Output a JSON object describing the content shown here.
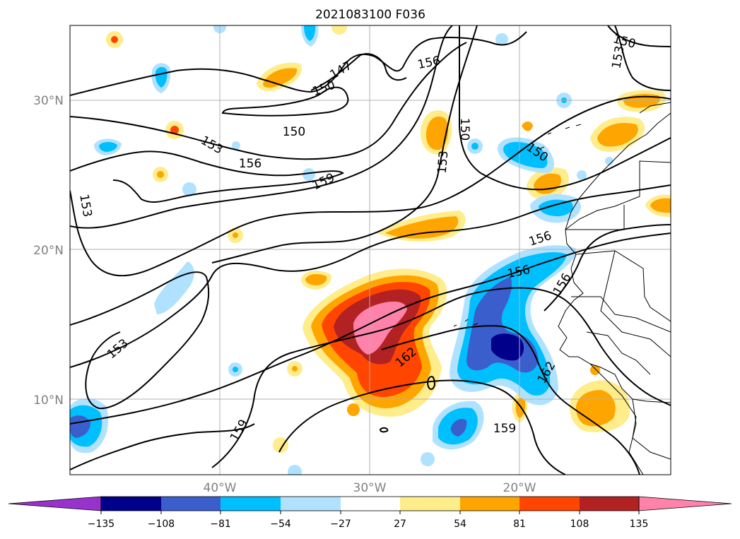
{
  "title": "2021083100 F036",
  "axes": {
    "lat_labels": [
      "30°N",
      "20°N",
      "10°N"
    ],
    "lon_labels": [
      "40°W",
      "30°W",
      "20°W"
    ],
    "grid": true,
    "label_color": "#808080"
  },
  "contour_labels": [
    "150",
    "153",
    "147",
    "156",
    "150",
    "150",
    "156",
    "153",
    "150",
    "153",
    "156",
    "150",
    "159",
    "153",
    "153",
    "156",
    "156",
    "162",
    "162",
    "159",
    "150",
    "159"
  ],
  "colorbar": {
    "orientation": "horizontal",
    "extend": "both",
    "ticks": [
      "−135",
      "−108",
      "−81",
      "−54",
      "−27",
      "27",
      "54",
      "81",
      "108",
      "135"
    ],
    "colors": [
      "#9932cc",
      "#00008b",
      "#3a5fcd",
      "#00bfff",
      "#b0e2ff",
      "#ffffff",
      "#ffec8b",
      "#ffa500",
      "#ff4500",
      "#b22222",
      "#ff82ab"
    ]
  }
}
